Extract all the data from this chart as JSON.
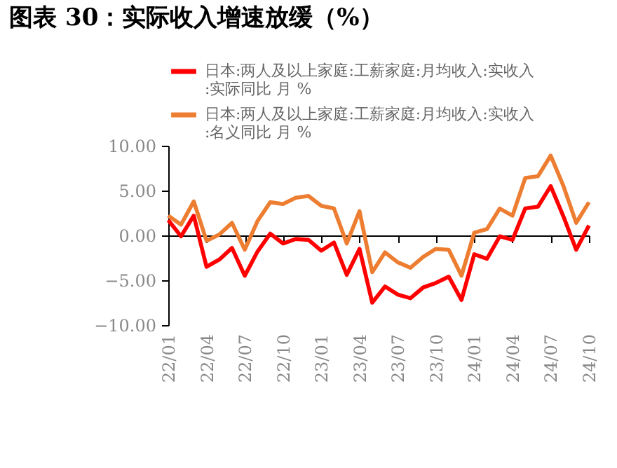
{
  "chart_data": {
    "type": "line",
    "title": "图表 30：实际收入增速放缓（%）",
    "categories": [
      "22/01",
      null,
      null,
      "22/04",
      null,
      null,
      "22/07",
      null,
      null,
      "22/10",
      null,
      null,
      "23/01",
      null,
      null,
      "23/04",
      null,
      null,
      "23/07",
      null,
      null,
      "23/10",
      null,
      null,
      "24/01",
      null,
      null,
      "24/04",
      null,
      null,
      "24/07",
      null,
      null,
      "24/10"
    ],
    "series": [
      {
        "name": "日本:两人及以上家庭:工薪家庭:月均收入:实收入:实际同比 月 %",
        "color": "#ff0000",
        "values": [
          1.7,
          -0.1,
          2.2,
          -3.5,
          -2.7,
          -1.4,
          -4.5,
          -1.8,
          0.2,
          -0.9,
          -0.4,
          -0.5,
          -1.7,
          -0.8,
          -4.4,
          -1.5,
          -7.5,
          -5.7,
          -6.6,
          -7.0,
          -5.8,
          -5.3,
          -4.6,
          -7.2,
          -2.1,
          -2.6,
          -0.1,
          -0.5,
          3.0,
          3.2,
          5.5,
          2.1,
          -1.6,
          1.1
        ]
      },
      {
        "name": "日本:两人及以上家庭:工薪家庭:月均收入:实收入:名义同比 月 %",
        "color": "#ed7d31",
        "values": [
          2.2,
          1.2,
          3.8,
          -0.6,
          0.1,
          1.4,
          -1.6,
          1.6,
          3.7,
          3.5,
          4.2,
          4.4,
          3.3,
          3.0,
          -0.9,
          2.7,
          -4.1,
          -1.9,
          -3.0,
          -3.6,
          -2.4,
          -1.5,
          -1.6,
          -4.5,
          0.3,
          0.7,
          3.0,
          2.2,
          6.4,
          6.6,
          8.9,
          5.5,
          1.4,
          3.7
        ]
      }
    ],
    "ylim": [
      -10,
      10
    ],
    "yticks": [
      {
        "value": -10,
        "label": "−10.00"
      },
      {
        "value": -5,
        "label": "−5.00"
      },
      {
        "value": 0,
        "label": "0.00"
      },
      {
        "value": 5,
        "label": "5.00"
      },
      {
        "value": 10,
        "label": "10.00"
      }
    ],
    "legend": "top",
    "marker": "none",
    "line_style": "solid"
  }
}
